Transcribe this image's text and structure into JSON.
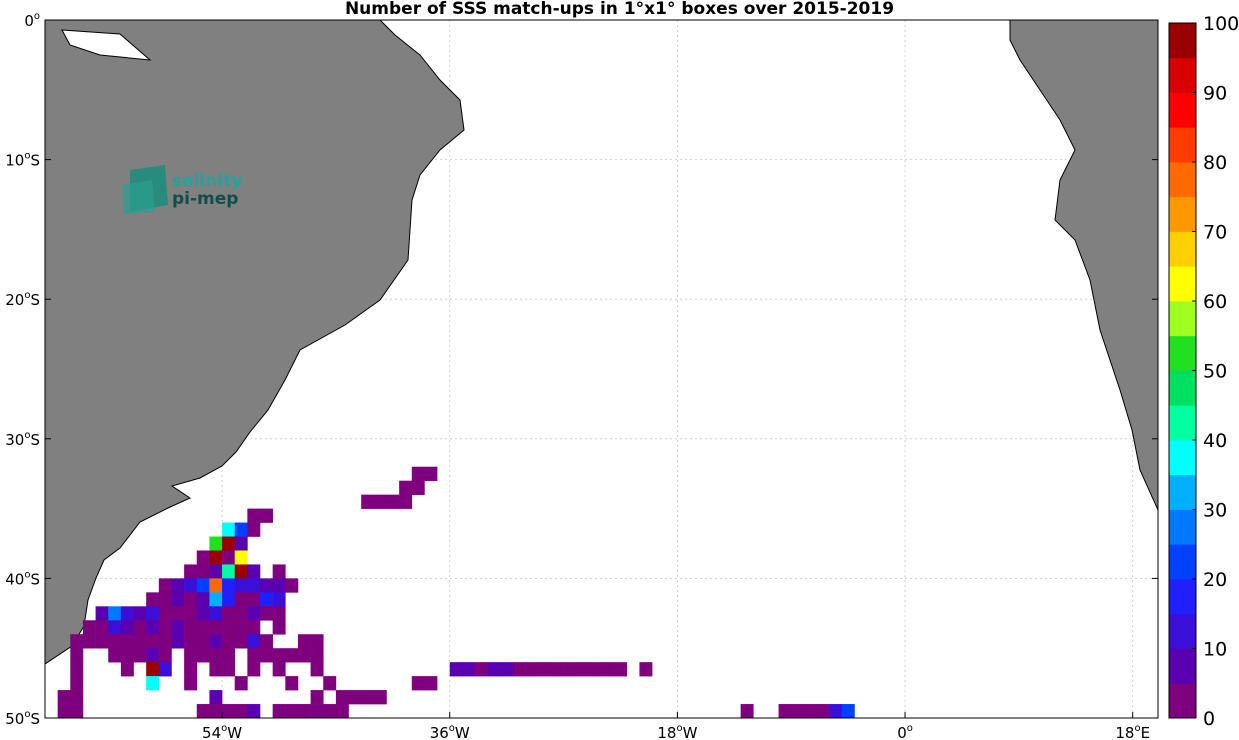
{
  "title": "Number of SSS match-ups in 1°x1° boxes over 2015-2019",
  "logo": {
    "line1": "salinity",
    "line2": "pi-mep"
  },
  "lat_ticks": [
    {
      "label": "0",
      "sup": "o",
      "lat": 0
    },
    {
      "label": "10",
      "sup": "o",
      "suffix": "S",
      "lat": -10
    },
    {
      "label": "20",
      "sup": "o",
      "suffix": "S",
      "lat": -20
    },
    {
      "label": "30",
      "sup": "o",
      "suffix": "S",
      "lat": -30
    },
    {
      "label": "40",
      "sup": "o",
      "suffix": "S",
      "lat": -40
    },
    {
      "label": "50",
      "sup": "o",
      "suffix": "S",
      "lat": -50
    }
  ],
  "lon_ticks": [
    {
      "label": "54",
      "sup": "o",
      "suffix": "W",
      "lon": -54
    },
    {
      "label": "36",
      "sup": "o",
      "suffix": "W",
      "lon": -36
    },
    {
      "label": "18",
      "sup": "o",
      "suffix": "W",
      "lon": -18
    },
    {
      "label": "0",
      "sup": "o",
      "suffix": "",
      "lon": 0
    },
    {
      "label": "18",
      "sup": "o",
      "suffix": "E",
      "lon": 18
    }
  ],
  "colorbar": {
    "min": 0,
    "max": 100,
    "labels": [
      "0",
      "10",
      "20",
      "30",
      "40",
      "50",
      "60",
      "70",
      "80",
      "90",
      "100"
    ],
    "colors": [
      "#7f007f",
      "#5a00b0",
      "#3a10d8",
      "#2020ff",
      "#0040ff",
      "#0078ff",
      "#00b0ff",
      "#00ffff",
      "#00ffa0",
      "#00e060",
      "#20e020",
      "#a0ff20",
      "#ffff00",
      "#ffd000",
      "#ff9800",
      "#ff6a00",
      "#ff3c00",
      "#ff0000",
      "#d80000",
      "#9a0000"
    ]
  },
  "chart_data": {
    "type": "heatmap",
    "title": "Number of SSS match-ups in 1°x1° boxes over 2015-2019",
    "xlim": [
      -68,
      20
    ],
    "ylim": [
      -50,
      0
    ],
    "grid": true,
    "cell_size_deg": 1,
    "cells": [
      [
        -39,
        -33,
        2
      ],
      [
        -38,
        -33,
        2
      ],
      [
        -40,
        -34,
        2
      ],
      [
        -39,
        -34,
        2
      ],
      [
        -43,
        -35,
        2
      ],
      [
        -42,
        -35,
        2
      ],
      [
        -41,
        -35,
        2
      ],
      [
        -40,
        -35,
        2
      ],
      [
        -52,
        -36,
        2
      ],
      [
        -51,
        -36,
        2
      ],
      [
        -54,
        -37,
        35
      ],
      [
        -53,
        -37,
        20
      ],
      [
        -52,
        -37,
        4
      ],
      [
        -55,
        -38,
        50
      ],
      [
        -54,
        -38,
        97
      ],
      [
        -53,
        -38,
        5
      ],
      [
        -56,
        -39,
        3
      ],
      [
        -55,
        -39,
        98
      ],
      [
        -54,
        -39,
        2
      ],
      [
        -53,
        -39,
        63
      ],
      [
        -57,
        -40,
        3
      ],
      [
        -56,
        -40,
        3
      ],
      [
        -55,
        -40,
        5
      ],
      [
        -54,
        -40,
        40
      ],
      [
        -53,
        -40,
        98
      ],
      [
        -52,
        -40,
        5
      ],
      [
        -50,
        -40,
        3
      ],
      [
        -59,
        -41,
        3
      ],
      [
        -58,
        -41,
        6
      ],
      [
        -57,
        -41,
        12
      ],
      [
        -56,
        -41,
        20
      ],
      [
        -55,
        -41,
        76
      ],
      [
        -54,
        -41,
        16
      ],
      [
        -53,
        -41,
        14
      ],
      [
        -52,
        -41,
        14
      ],
      [
        -51,
        -41,
        8
      ],
      [
        -50,
        -41,
        5
      ],
      [
        -49,
        -41,
        4
      ],
      [
        -60,
        -42,
        4
      ],
      [
        -59,
        -42,
        4
      ],
      [
        -58,
        -42,
        5
      ],
      [
        -57,
        -42,
        4
      ],
      [
        -56,
        -42,
        5
      ],
      [
        -55,
        -42,
        33
      ],
      [
        -54,
        -42,
        16
      ],
      [
        -53,
        -42,
        2
      ],
      [
        -52,
        -42,
        3
      ],
      [
        -51,
        -42,
        16
      ],
      [
        -50,
        -42,
        14
      ],
      [
        -64,
        -43,
        6
      ],
      [
        -63,
        -43,
        28
      ],
      [
        -62,
        -43,
        14
      ],
      [
        -61,
        -43,
        8
      ],
      [
        -60,
        -43,
        10
      ],
      [
        -59,
        -43,
        3
      ],
      [
        -58,
        -43,
        4
      ],
      [
        -57,
        -43,
        3
      ],
      [
        -56,
        -43,
        8
      ],
      [
        -55,
        -43,
        14
      ],
      [
        -54,
        -43,
        3
      ],
      [
        -53,
        -43,
        3
      ],
      [
        -52,
        -43,
        6
      ],
      [
        -51,
        -43,
        4
      ],
      [
        -50,
        -43,
        4
      ],
      [
        -65,
        -44,
        3
      ],
      [
        -64,
        -44,
        3
      ],
      [
        -63,
        -44,
        11
      ],
      [
        -62,
        -44,
        8
      ],
      [
        -61,
        -44,
        4
      ],
      [
        -60,
        -44,
        8
      ],
      [
        -59,
        -44,
        3
      ],
      [
        -58,
        -44,
        6
      ],
      [
        -57,
        -44,
        3
      ],
      [
        -56,
        -44,
        3
      ],
      [
        -55,
        -44,
        3
      ],
      [
        -54,
        -44,
        3
      ],
      [
        -53,
        -44,
        3
      ],
      [
        -52,
        -44,
        3
      ],
      [
        -50,
        -44,
        3
      ],
      [
        -66,
        -45,
        3
      ],
      [
        -65,
        -45,
        3
      ],
      [
        -64,
        -45,
        3
      ],
      [
        -63,
        -45,
        3
      ],
      [
        -62,
        -45,
        3
      ],
      [
        -61,
        -45,
        3
      ],
      [
        -60,
        -45,
        3
      ],
      [
        -59,
        -45,
        4
      ],
      [
        -58,
        -45,
        9
      ],
      [
        -57,
        -45,
        3
      ],
      [
        -56,
        -45,
        3
      ],
      [
        -55,
        -45,
        6
      ],
      [
        -54,
        -45,
        3
      ],
      [
        -53,
        -45,
        3
      ],
      [
        -52,
        -45,
        10
      ],
      [
        -51,
        -45,
        3
      ],
      [
        -48,
        -45,
        3
      ],
      [
        -47,
        -45,
        3
      ],
      [
        -66,
        -46,
        3
      ],
      [
        -63,
        -46,
        3
      ],
      [
        -62,
        -46,
        3
      ],
      [
        -61,
        -46,
        3
      ],
      [
        -60,
        -46,
        8
      ],
      [
        -59,
        -46,
        3
      ],
      [
        -57,
        -46,
        3
      ],
      [
        -56,
        -46,
        3
      ],
      [
        -55,
        -46,
        3
      ],
      [
        -54,
        -46,
        3
      ],
      [
        -52,
        -46,
        3
      ],
      [
        -51,
        -46,
        3
      ],
      [
        -50,
        -46,
        3
      ],
      [
        -49,
        -46,
        3
      ],
      [
        -48,
        -46,
        3
      ],
      [
        -47,
        -46,
        3
      ],
      [
        -66,
        -47,
        3
      ],
      [
        -62,
        -47,
        3
      ],
      [
        -60,
        -47,
        99
      ],
      [
        -59,
        -47,
        12
      ],
      [
        -57,
        -47,
        3
      ],
      [
        -55,
        -47,
        3
      ],
      [
        -54,
        -47,
        3
      ],
      [
        -52,
        -47,
        3
      ],
      [
        -50,
        -47,
        3
      ],
      [
        -47,
        -47,
        3
      ],
      [
        -36,
        -47,
        8
      ],
      [
        -35,
        -47,
        8
      ],
      [
        -34,
        -47,
        3
      ],
      [
        -33,
        -47,
        7
      ],
      [
        -32,
        -47,
        8
      ],
      [
        -31,
        -47,
        3
      ],
      [
        -30,
        -47,
        3
      ],
      [
        -29,
        -47,
        3
      ],
      [
        -28,
        -47,
        3
      ],
      [
        -27,
        -47,
        3
      ],
      [
        -26,
        -47,
        3
      ],
      [
        -25,
        -47,
        3
      ],
      [
        -24,
        -47,
        3
      ],
      [
        -23,
        -47,
        3
      ],
      [
        -21,
        -47,
        3
      ],
      [
        -66,
        -48,
        3
      ],
      [
        -60,
        -48,
        38
      ],
      [
        -57,
        -48,
        3
      ],
      [
        -53,
        -48,
        3
      ],
      [
        -49,
        -48,
        3
      ],
      [
        -46,
        -48,
        3
      ],
      [
        -39,
        -48,
        3
      ],
      [
        -38,
        -48,
        3
      ],
      [
        -67,
        -49,
        3
      ],
      [
        -66,
        -49,
        3
      ],
      [
        -55,
        -49,
        5
      ],
      [
        -47,
        -49,
        3
      ],
      [
        -45,
        -49,
        3
      ],
      [
        -44,
        -49,
        3
      ],
      [
        -43,
        -49,
        3
      ],
      [
        -42,
        -49,
        3
      ],
      [
        -67,
        -50,
        3
      ],
      [
        -66,
        -50,
        3
      ],
      [
        -56,
        -50,
        3
      ],
      [
        -55,
        -50,
        3
      ],
      [
        -54,
        -50,
        3
      ],
      [
        -53,
        -50,
        3
      ],
      [
        -52,
        -50,
        5
      ],
      [
        -50,
        -50,
        3
      ],
      [
        -49,
        -50,
        3
      ],
      [
        -48,
        -50,
        3
      ],
      [
        -47,
        -50,
        3
      ],
      [
        -46,
        -50,
        3
      ],
      [
        -45,
        -50,
        3
      ],
      [
        -13,
        -50,
        3
      ],
      [
        -10,
        -50,
        3
      ],
      [
        -9,
        -50,
        3
      ],
      [
        -8,
        -50,
        3
      ],
      [
        -7,
        -50,
        3
      ],
      [
        -6,
        -50,
        14
      ],
      [
        -5,
        -50,
        24
      ]
    ]
  }
}
